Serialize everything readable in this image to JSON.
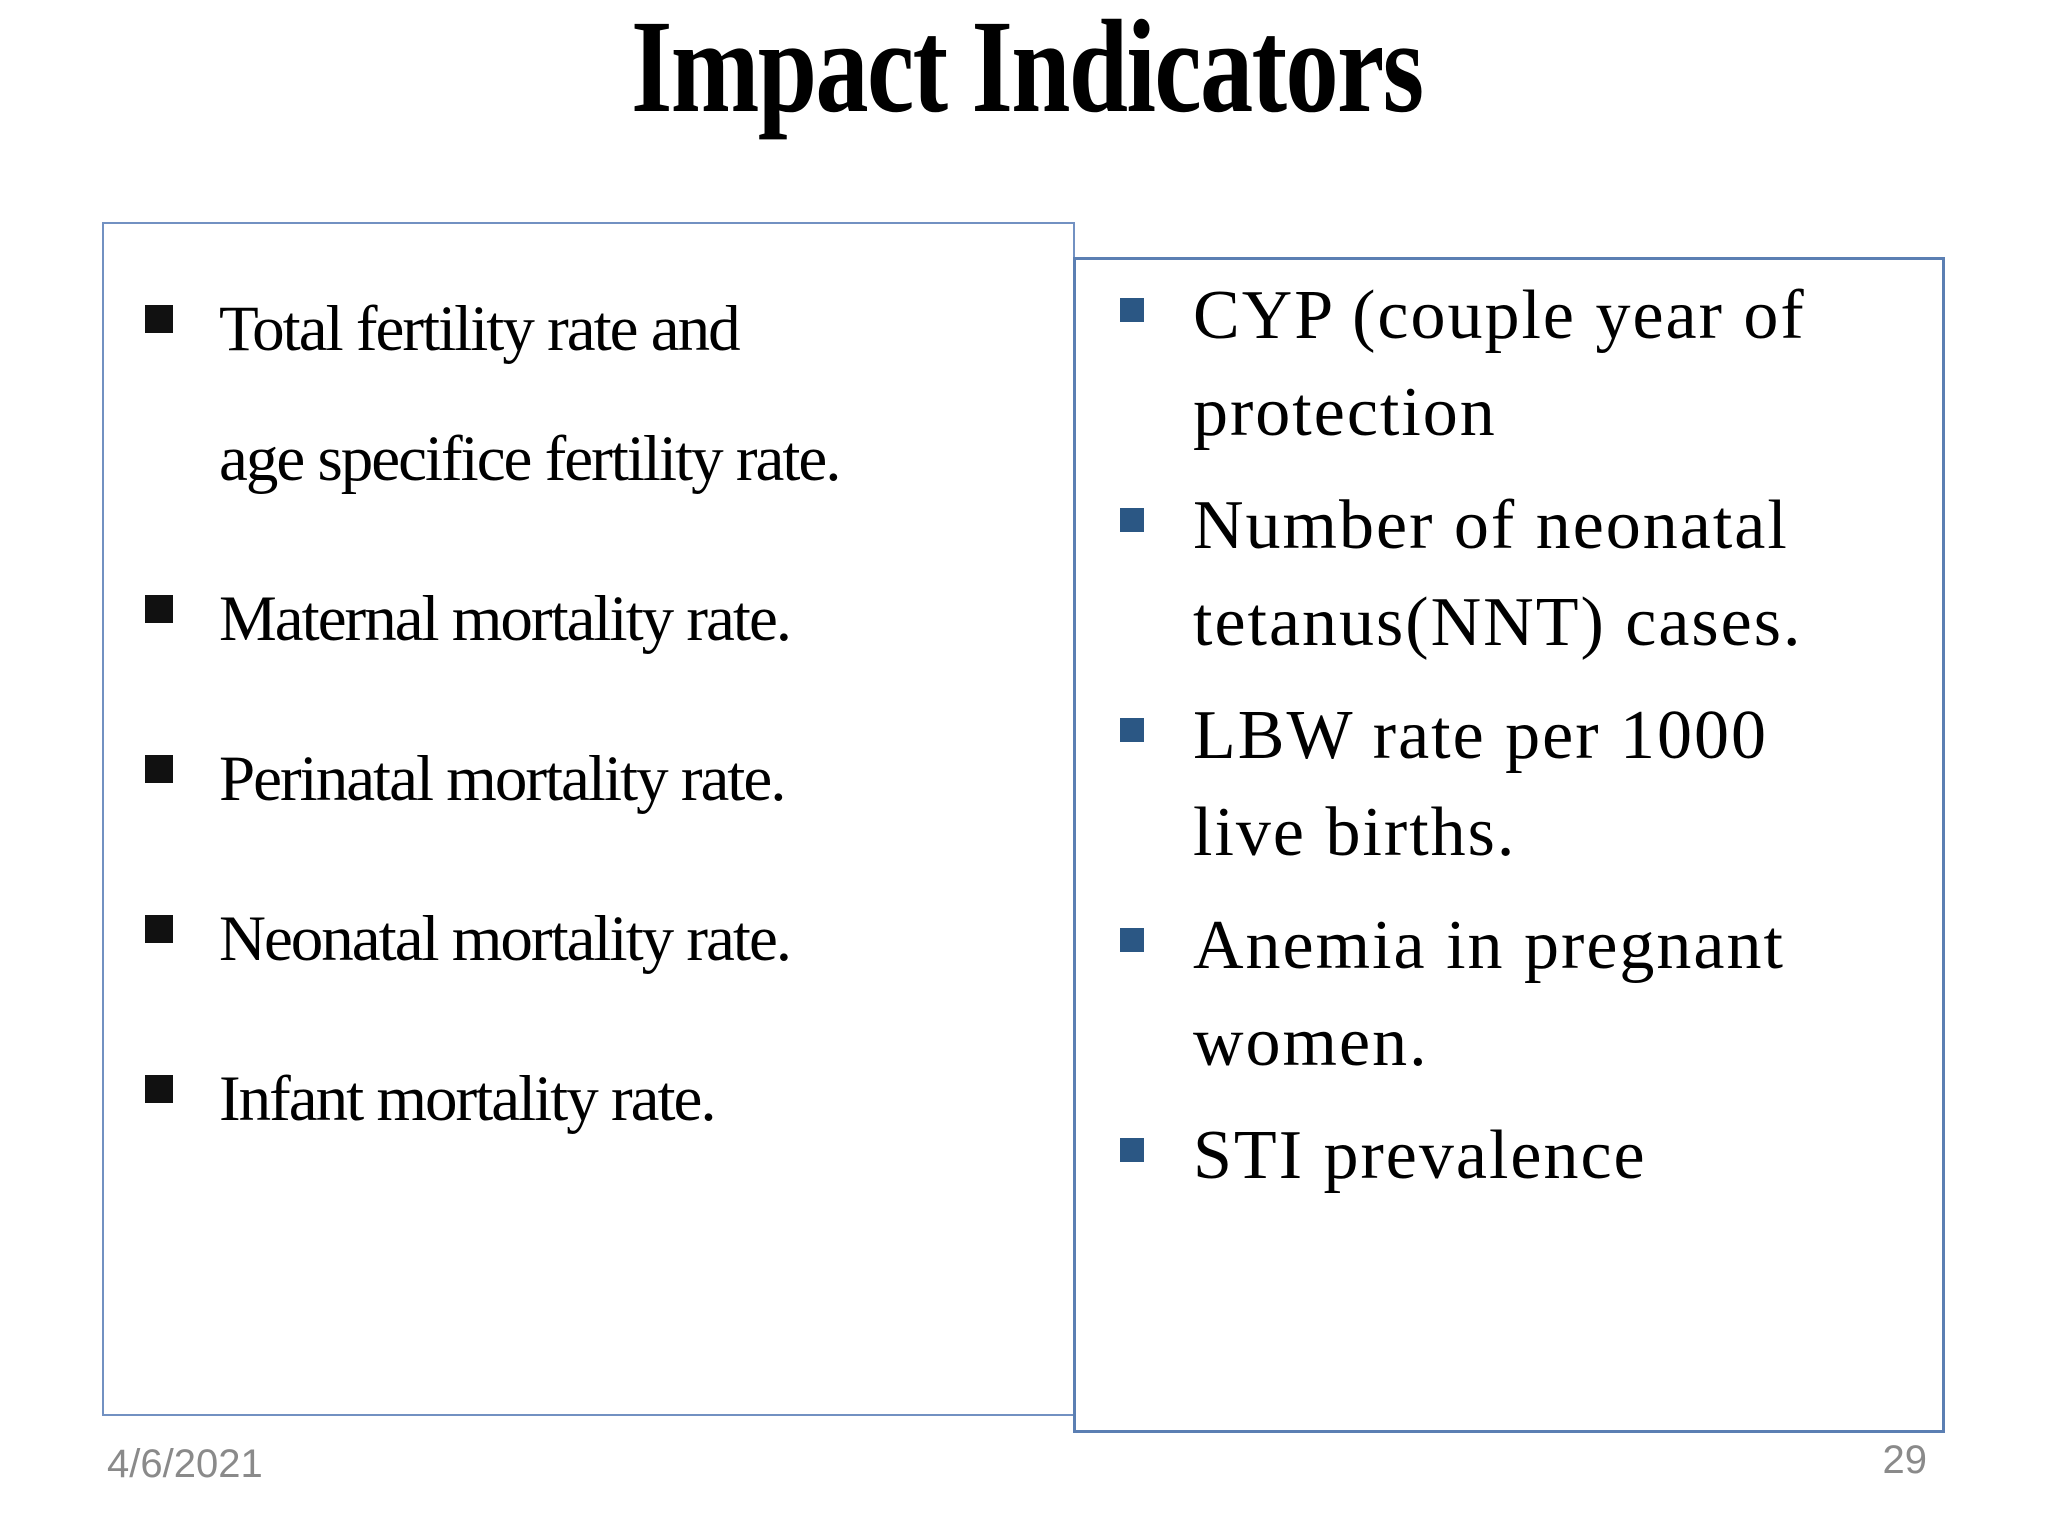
{
  "slide": {
    "title": "Impact Indicators",
    "left_box": {
      "items": [
        {
          "lines": [
            "Total fertility rate and",
            "age specifice fertility rate."
          ]
        },
        {
          "lines": [
            "Maternal mortality rate."
          ]
        },
        {
          "lines": [
            "Perinatal mortality rate."
          ]
        },
        {
          "lines": [
            "Neonatal mortality rate."
          ]
        },
        {
          "lines": [
            "Infant mortality rate."
          ]
        }
      ]
    },
    "right_box": {
      "items": [
        {
          "lines": [
            "CYP (couple year of",
            "protection"
          ]
        },
        {
          "lines": [
            "Number of neonatal",
            "tetanus(NNT) cases."
          ]
        },
        {
          "lines": [
            "LBW rate per 1000",
            "live births."
          ]
        },
        {
          "lines": [
            "Anemia in pregnant",
            "women."
          ]
        },
        {
          "lines": [
            "STI prevalence"
          ]
        }
      ]
    },
    "footer": {
      "date": "4/6/2021",
      "page_number": "29"
    }
  },
  "colors": {
    "background": "#FFFFFF",
    "text": "#000000",
    "box-border-left": "#7291C2",
    "box-border-right": "#5B7FB3",
    "bullet-left": "#111111",
    "bullet-right": "#2B5784",
    "footer-text": "#8A8A8A"
  }
}
